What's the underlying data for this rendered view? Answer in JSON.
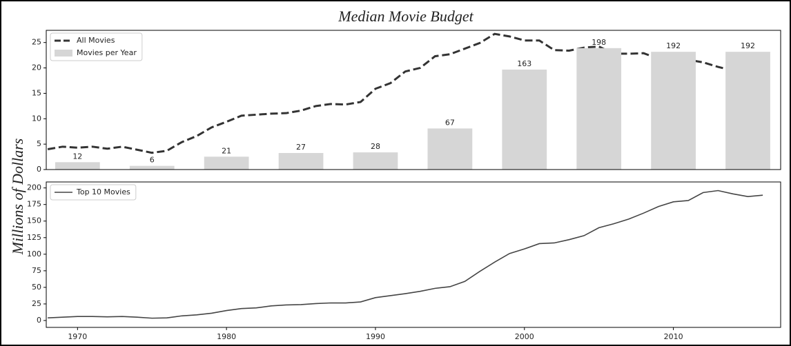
{
  "chart_data": [
    {
      "type": "combo",
      "title": "Median Movie Budget",
      "ylabel": "Millions of Dollars",
      "xlim": [
        1967.9,
        2017.2
      ],
      "ylim": [
        0,
        27.4
      ],
      "yticks": [
        0,
        5,
        10,
        15,
        20,
        25
      ],
      "y2lim": [
        0,
        227
      ],
      "legend": "upper left",
      "bar_width": 3,
      "series": [
        {
          "name": "All Movies",
          "type": "line",
          "color": "#333333",
          "dashed": true,
          "x": [
            1968,
            1969,
            1970,
            1971,
            1972,
            1973,
            1974,
            1975,
            1976,
            1977,
            1978,
            1979,
            1980,
            1981,
            1982,
            1983,
            1984,
            1985,
            1986,
            1987,
            1988,
            1989,
            1990,
            1991,
            1992,
            1993,
            1994,
            1995,
            1996,
            1997,
            1998,
            1999,
            2000,
            2001,
            2002,
            2003,
            2004,
            2005,
            2006,
            2007,
            2008,
            2009,
            2010,
            2011,
            2012,
            2013,
            2014,
            2015,
            2016
          ],
          "values": [
            4.0,
            4.5,
            4.3,
            4.5,
            4.1,
            4.5,
            3.9,
            3.3,
            3.7,
            5.4,
            6.6,
            8.3,
            9.4,
            10.6,
            10.8,
            11.0,
            11.1,
            11.6,
            12.5,
            12.9,
            12.8,
            13.3,
            15.9,
            17.0,
            19.3,
            20.0,
            22.3,
            22.7,
            23.8,
            24.9,
            26.7,
            26.2,
            25.4,
            25.4,
            23.5,
            23.4,
            24.0,
            24.2,
            22.8,
            22.8,
            22.9,
            21.8,
            20.8,
            21.6,
            21.1,
            20.2,
            19.5,
            18.3,
            17.9
          ]
        },
        {
          "name": "Movies per Year",
          "type": "bar",
          "color": "#d6d6d6",
          "axis": "y2",
          "x": [
            1970,
            1975,
            1980,
            1985,
            1990,
            1995,
            2000,
            2005,
            2010,
            2015
          ],
          "values": [
            12,
            6,
            21,
            27,
            28,
            67,
            163,
            198,
            192,
            192
          ]
        }
      ]
    },
    {
      "type": "line",
      "xlim": [
        1967.9,
        2017.2
      ],
      "ylim": [
        -10.4,
        209
      ],
      "xticks": [
        1970,
        1980,
        1990,
        2000,
        2010
      ],
      "yticks": [
        0,
        25,
        50,
        75,
        100,
        125,
        150,
        175,
        200
      ],
      "legend": "upper left",
      "series": [
        {
          "name": "Top 10 Movies",
          "color": "#444444",
          "x": [
            1968,
            1969,
            1970,
            1971,
            1972,
            1973,
            1974,
            1975,
            1976,
            1977,
            1978,
            1979,
            1980,
            1981,
            1982,
            1983,
            1984,
            1985,
            1986,
            1987,
            1988,
            1989,
            1990,
            1991,
            1992,
            1993,
            1994,
            1995,
            1996,
            1997,
            1998,
            1999,
            2000,
            2001,
            2002,
            2003,
            2004,
            2005,
            2006,
            2007,
            2008,
            2009,
            2010,
            2011,
            2012,
            2013,
            2014,
            2015,
            2016
          ],
          "values": [
            4,
            5,
            6,
            6,
            5.5,
            6,
            5,
            3.5,
            4,
            7,
            8.5,
            11,
            15,
            18,
            19,
            22,
            23.5,
            24,
            25.5,
            26.5,
            26.5,
            28,
            34.5,
            37.5,
            40.5,
            44,
            48.5,
            51,
            59,
            74,
            88,
            101,
            108,
            116,
            117,
            122,
            128,
            140,
            146,
            153,
            162,
            172,
            179,
            181,
            193,
            196,
            191,
            187,
            189
          ]
        }
      ]
    }
  ]
}
